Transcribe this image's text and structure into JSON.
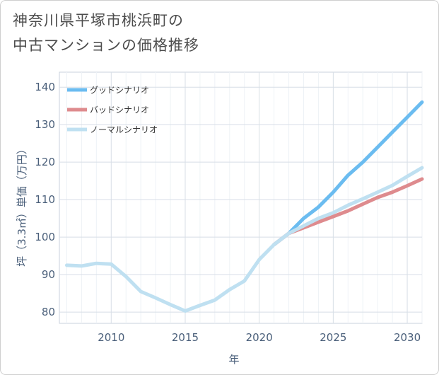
{
  "title_lines": [
    "神奈川県平塚市桃浜町の",
    "中古マンションの価格推移"
  ],
  "chart_data": {
    "type": "line",
    "xlabel": "年",
    "ylabel": "坪（3.3㎡）単価（万円）",
    "xlim": [
      2006.5,
      2031
    ],
    "ylim": [
      77,
      144
    ],
    "xticks": [
      2010,
      2015,
      2020,
      2025,
      2030
    ],
    "yticks": [
      80,
      90,
      100,
      110,
      120,
      130,
      140
    ],
    "grid": true,
    "legend_position": "top-left",
    "series": [
      {
        "name": "グッドシナリオ",
        "color": "#6bbcf0",
        "x": [
          2021,
          2022,
          2023,
          2024,
          2025,
          2026,
          2027,
          2028,
          2029,
          2030,
          2031
        ],
        "y": [
          98,
          101,
          105,
          108,
          112,
          116.5,
          120,
          124,
          128,
          132,
          136
        ]
      },
      {
        "name": "バッドシナリオ",
        "color": "#de8b8e",
        "x": [
          2021,
          2022,
          2023,
          2024,
          2025,
          2026,
          2027,
          2028,
          2029,
          2030,
          2031
        ],
        "y": [
          98,
          101,
          102.5,
          104,
          105.5,
          107,
          108.8,
          110.6,
          112,
          113.7,
          115.5
        ]
      },
      {
        "name": "ノーマルシナリオ",
        "color": "#bfe0f1",
        "x": [
          2007,
          2008,
          2009,
          2010,
          2011,
          2012,
          2013,
          2014,
          2015,
          2016,
          2017,
          2018,
          2019,
          2020,
          2021,
          2022,
          2023,
          2024,
          2025,
          2026,
          2027,
          2028,
          2029,
          2030,
          2031
        ],
        "y": [
          92.5,
          92.3,
          93,
          92.8,
          89.5,
          85.5,
          83.8,
          82,
          80.3,
          81.8,
          83.2,
          86,
          88.3,
          94,
          98,
          101,
          103,
          105,
          106.5,
          108.5,
          110.2,
          112,
          113.8,
          116.2,
          118.5
        ]
      }
    ]
  }
}
